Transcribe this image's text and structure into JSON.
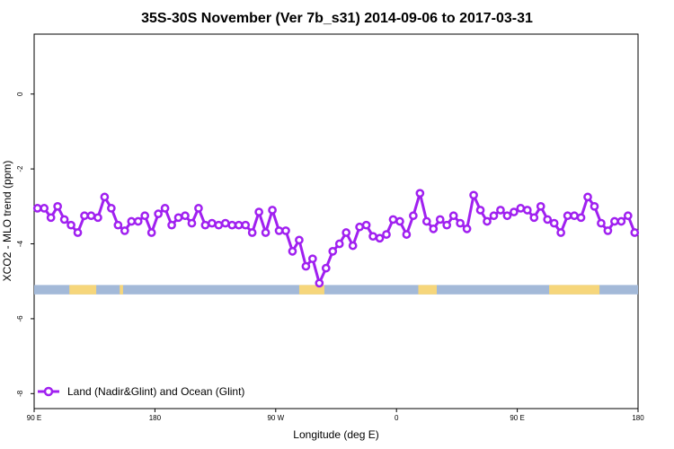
{
  "chart_data": {
    "type": "line",
    "title": "35S-30S November (Ver 7b_s31)   2014-09-06 to 2017-03-31",
    "xlabel": "Longitude (deg E)",
    "ylabel": "XCO2 - MLO trend (ppm)",
    "xlim": [
      90,
      450
    ],
    "ylim": [
      -8.4,
      1.6
    ],
    "x_ticks": [
      {
        "value": 90,
        "label": "90 E"
      },
      {
        "value": 162,
        "label": "180"
      },
      {
        "value": 234,
        "label": "90 W"
      },
      {
        "value": 306,
        "label": "0"
      },
      {
        "value": 378,
        "label": "90 E"
      },
      {
        "value": 450,
        "label": "180"
      }
    ],
    "y_ticks": [
      {
        "value": 0,
        "label": "0"
      },
      {
        "value": -2,
        "label": "-2"
      },
      {
        "value": -4,
        "label": "-4"
      },
      {
        "value": -6,
        "label": "-6"
      },
      {
        "value": -8,
        "label": "-8"
      }
    ],
    "grid": false,
    "legend_position": "bottom-left",
    "series": [
      {
        "name": "Land (Nadir&Glint) and Ocean (Glint)",
        "color": "#a020f0",
        "points": [
          [
            92,
            -3.05
          ],
          [
            96,
            -3.05
          ],
          [
            100,
            -3.3
          ],
          [
            104,
            -3.0
          ],
          [
            108,
            -3.35
          ],
          [
            112,
            -3.5
          ],
          [
            116,
            -3.7
          ],
          [
            120,
            -3.25
          ],
          [
            124,
            -3.25
          ],
          [
            128,
            -3.3
          ],
          [
            132,
            -2.75
          ],
          [
            136,
            -3.05
          ],
          [
            140,
            -3.5
          ],
          [
            144,
            -3.65
          ],
          [
            148,
            -3.4
          ],
          [
            152,
            -3.4
          ],
          [
            156,
            -3.25
          ],
          [
            160,
            -3.7
          ],
          [
            164,
            -3.2
          ],
          [
            168,
            -3.05
          ],
          [
            172,
            -3.5
          ],
          [
            176,
            -3.3
          ],
          [
            180,
            -3.25
          ],
          [
            184,
            -3.45
          ],
          [
            188,
            -3.05
          ],
          [
            192,
            -3.5
          ],
          [
            196,
            -3.45
          ],
          [
            200,
            -3.5
          ],
          [
            204,
            -3.45
          ],
          [
            208,
            -3.5
          ],
          [
            212,
            -3.5
          ],
          [
            216,
            -3.5
          ],
          [
            220,
            -3.7
          ],
          [
            224,
            -3.15
          ],
          [
            228,
            -3.7
          ],
          [
            232,
            -3.1
          ],
          [
            236,
            -3.65
          ],
          [
            240,
            -3.65
          ],
          [
            244,
            -4.2
          ],
          [
            248,
            -3.9
          ],
          [
            252,
            -4.6
          ],
          [
            256,
            -4.4
          ],
          [
            260,
            -5.05
          ],
          [
            264,
            -4.65
          ],
          [
            268,
            -4.2
          ],
          [
            272,
            -4.0
          ],
          [
            276,
            -3.7
          ],
          [
            280,
            -4.05
          ],
          [
            284,
            -3.55
          ],
          [
            288,
            -3.5
          ],
          [
            292,
            -3.8
          ],
          [
            296,
            -3.85
          ],
          [
            300,
            -3.75
          ],
          [
            304,
            -3.35
          ],
          [
            308,
            -3.4
          ],
          [
            312,
            -3.75
          ],
          [
            316,
            -3.25
          ],
          [
            320,
            -2.65
          ],
          [
            324,
            -3.4
          ],
          [
            328,
            -3.6
          ],
          [
            332,
            -3.35
          ],
          [
            336,
            -3.5
          ],
          [
            340,
            -3.25
          ],
          [
            344,
            -3.45
          ],
          [
            348,
            -3.6
          ],
          [
            352,
            -2.7
          ],
          [
            356,
            -3.1
          ],
          [
            360,
            -3.4
          ],
          [
            364,
            -3.25
          ],
          [
            368,
            -3.1
          ],
          [
            372,
            -3.25
          ],
          [
            376,
            -3.15
          ],
          [
            380,
            -3.05
          ],
          [
            384,
            -3.1
          ],
          [
            388,
            -3.3
          ],
          [
            392,
            -3.0
          ],
          [
            396,
            -3.35
          ],
          [
            400,
            -3.45
          ],
          [
            404,
            -3.7
          ],
          [
            408,
            -3.25
          ],
          [
            412,
            -3.25
          ],
          [
            416,
            -3.3
          ],
          [
            420,
            -2.75
          ],
          [
            424,
            -3.0
          ],
          [
            428,
            -3.45
          ],
          [
            432,
            -3.65
          ],
          [
            436,
            -3.4
          ],
          [
            440,
            -3.4
          ],
          [
            444,
            -3.25
          ],
          [
            448,
            -3.7
          ]
        ]
      }
    ],
    "map_strip": {
      "y_range": [
        -5.35,
        -5.1
      ],
      "ocean_color": "#a3b9d8",
      "land_color": "#f6d67b",
      "land_segments": [
        [
          111,
          127
        ],
        [
          141,
          143
        ],
        [
          248,
          263
        ],
        [
          319,
          330
        ],
        [
          397,
          427
        ]
      ]
    }
  }
}
